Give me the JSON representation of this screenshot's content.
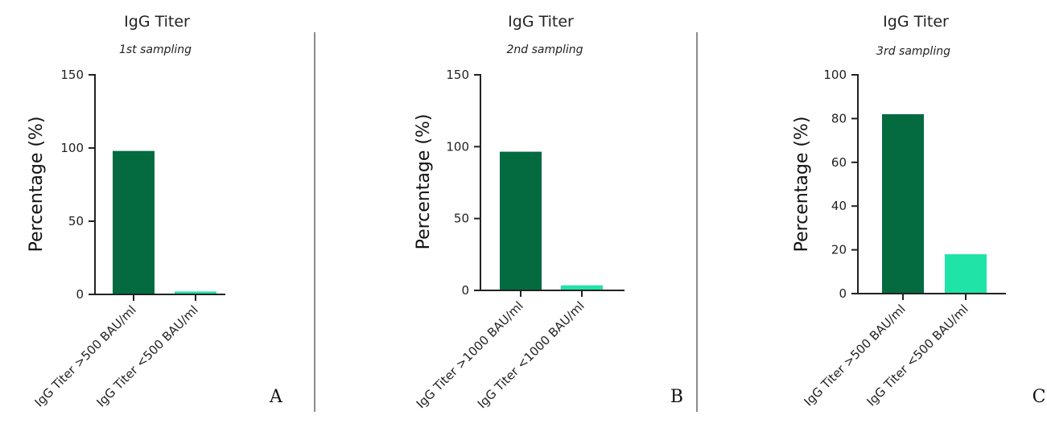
{
  "chart_data": [
    {
      "type": "bar",
      "panel": "A",
      "title": "IgG Titer",
      "subtitle": "1st sampling",
      "ylabel": "Percentage (%)",
      "xlabel": "",
      "ylim": [
        0,
        150
      ],
      "yticks": [
        0,
        50,
        100,
        150
      ],
      "categories": [
        "IgG Titer >500 BAU/ml",
        "IgG Titer <500 BAU/ml"
      ],
      "values": [
        98,
        2
      ],
      "colors": [
        "#036b3f",
        "#20e3a8"
      ]
    },
    {
      "type": "bar",
      "panel": "B",
      "title": "IgG Titer",
      "subtitle": "2nd sampling",
      "ylabel": "Percentage (%)",
      "xlabel": "",
      "ylim": [
        0,
        150
      ],
      "yticks": [
        0,
        50,
        100,
        150
      ],
      "categories": [
        "IgG Titer >1000 BAU/ml",
        "IgG Titer <1000 BAU/ml"
      ],
      "values": [
        96.5,
        3.5
      ],
      "colors": [
        "#036b3f",
        "#20e3a8"
      ]
    },
    {
      "type": "bar",
      "panel": "C",
      "title": "IgG Titer",
      "subtitle": "3rd sampling",
      "ylabel": "Percentage (%)",
      "xlabel": "",
      "ylim": [
        0,
        100
      ],
      "yticks": [
        0,
        20,
        40,
        60,
        80,
        100
      ],
      "categories": [
        "IgG Titer >500 BAU/ml",
        "IgG Titer <500 BAU/ml"
      ],
      "values": [
        82,
        18
      ],
      "colors": [
        "#036b3f",
        "#20e3a8"
      ]
    }
  ]
}
